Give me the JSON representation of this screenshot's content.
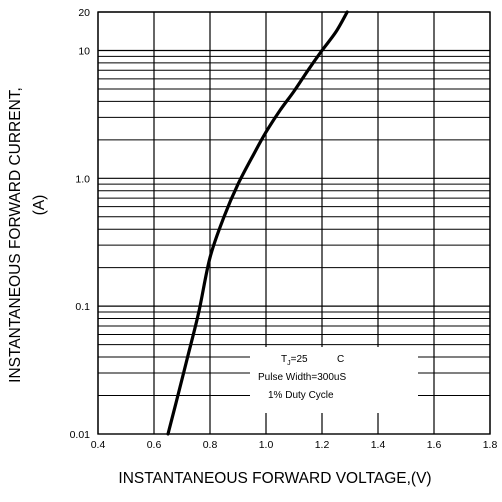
{
  "chart_data": {
    "type": "line",
    "title": "",
    "xlabel": "INSTANTANEOUS FORWARD VOLTAGE,(V)",
    "ylabel_line1": "INSTANTANEOUS FORWARD CURRENT,",
    "ylabel_line2": "(A)",
    "xlim": [
      0.4,
      1.8
    ],
    "ylim": [
      0.01,
      20
    ],
    "y_scale": "log",
    "grid": true,
    "x_ticks": [
      "0.4",
      "0.6",
      "0.8",
      "1.0",
      "1.2",
      "1.4",
      "1.6",
      "1.8"
    ],
    "y_ticks": [
      {
        "value": 0.01,
        "label": "0.01"
      },
      {
        "value": 0.1,
        "label": "0.1"
      },
      {
        "value": 1.0,
        "label": "1.0"
      },
      {
        "value": 10,
        "label": "10"
      },
      {
        "value": 20,
        "label": "20"
      }
    ],
    "series": [
      {
        "name": "",
        "x": [
          0.65,
          0.68,
          0.72,
          0.76,
          0.8,
          0.85,
          0.9,
          0.96,
          1.0,
          1.05,
          1.1,
          1.15,
          1.2,
          1.25,
          1.29
        ],
        "y": [
          0.01,
          0.018,
          0.04,
          0.09,
          0.24,
          0.5,
          0.9,
          1.6,
          2.3,
          3.4,
          4.8,
          7.0,
          10.0,
          14.0,
          20.0
        ]
      }
    ],
    "annotation": {
      "line1_prefix": "T",
      "line1_sub": "J",
      "line1_value": "=25",
      "line1_unit": "C",
      "line2": "Pulse Width=300uS",
      "line3": "1% Duty Cycle"
    }
  }
}
